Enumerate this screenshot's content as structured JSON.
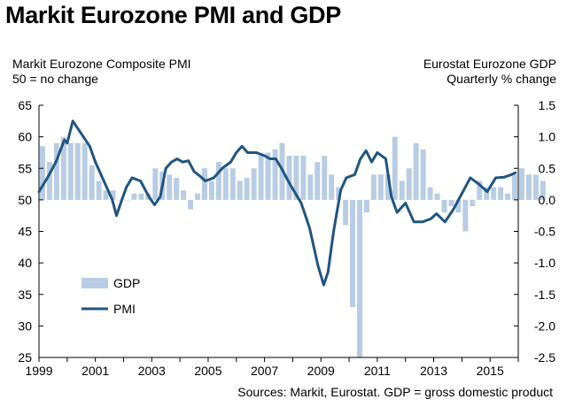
{
  "chart_data": {
    "type": "bar+line",
    "title": "Markit Eurozone PMI and GDP",
    "left_axis": {
      "label_line1": "Markit Eurozone Composite PMI",
      "label_line2": "50 = no change",
      "ylim": [
        25,
        65
      ],
      "ticks": [
        "65",
        "60",
        "55",
        "50",
        "45",
        "40",
        "35",
        "30",
        "25"
      ]
    },
    "right_axis": {
      "label_line1": "Eurostat Eurozone GDP",
      "label_line2": "Quarterly % change",
      "ylim": [
        -2.5,
        1.5
      ],
      "ticks": [
        "1.5",
        "1.0",
        "0.5",
        "0.0",
        "-0.5",
        "-1.0",
        "-1.5",
        "-2.0",
        "-2.5"
      ]
    },
    "x_ticks": [
      "1999",
      "2001",
      "2003",
      "2005",
      "2007",
      "2009",
      "2011",
      "2013",
      "2015"
    ],
    "xlim": [
      1999,
      2016
    ],
    "legend": [
      {
        "name": "GDP",
        "color": "#b8cce4"
      },
      {
        "name": "PMI",
        "color": "#1f5582"
      }
    ],
    "source": "Sources: Markit, Eurostat. GDP = gross domestic product",
    "series": [
      {
        "name": "GDP",
        "kind": "bar",
        "axis": "right",
        "color": "#b8cce4",
        "values": [
          0.85,
          0.6,
          0.9,
          1.0,
          0.9,
          0.9,
          0.9,
          0.55,
          0.3,
          0.15,
          0.15,
          0.0,
          0.0,
          0.1,
          0.1,
          0.1,
          0.5,
          0.45,
          0.4,
          0.35,
          0.15,
          -0.15,
          0.1,
          0.5,
          0.3,
          0.6,
          0.5,
          0.5,
          0.3,
          0.35,
          0.5,
          0.7,
          0.75,
          0.8,
          0.9,
          0.7,
          0.7,
          0.7,
          0.4,
          0.6,
          0.7,
          0.4,
          0.2,
          -0.4,
          -1.7,
          -2.5,
          -0.2,
          0.4,
          0.4,
          0.4,
          1.0,
          0.3,
          0.5,
          0.9,
          0.8,
          0.2,
          0.1,
          -0.2,
          -0.1,
          -0.2,
          -0.5,
          -0.1,
          0.3,
          0.2,
          0.2,
          0.2,
          0.1,
          0.4,
          0.5,
          0.4,
          0.4,
          0.3
        ]
      },
      {
        "name": "PMI",
        "kind": "line",
        "axis": "left",
        "color": "#1f5582",
        "x": [
          1999.0,
          1999.3,
          1999.6,
          1999.9,
          2000.0,
          2000.2,
          2000.5,
          2000.8,
          2001.0,
          2001.3,
          2001.6,
          2001.75,
          2001.9,
          2002.1,
          2002.3,
          2002.6,
          2002.9,
          2003.1,
          2003.3,
          2003.5,
          2003.7,
          2003.9,
          2004.1,
          2004.3,
          2004.5,
          2004.7,
          2004.9,
          2005.2,
          2005.5,
          2005.8,
          2006.0,
          2006.2,
          2006.4,
          2006.7,
          2007.0,
          2007.2,
          2007.4,
          2007.6,
          2007.9,
          2008.1,
          2008.3,
          2008.6,
          2008.9,
          2009.0,
          2009.1,
          2009.25,
          2009.45,
          2009.7,
          2009.9,
          2010.2,
          2010.4,
          2010.6,
          2010.8,
          2011.0,
          2011.3,
          2011.5,
          2011.7,
          2012.0,
          2012.3,
          2012.6,
          2012.9,
          2013.1,
          2013.4,
          2013.7,
          2014.0,
          2014.3,
          2014.6,
          2014.9,
          2015.2,
          2015.5,
          2015.7,
          2015.9
        ],
        "values": [
          51.3,
          53.5,
          56.0,
          59.5,
          59.0,
          62.5,
          60.5,
          58.5,
          56.0,
          53.0,
          50.0,
          47.5,
          49.5,
          52.0,
          53.5,
          53.0,
          50.5,
          49.2,
          50.5,
          55.0,
          56.0,
          56.5,
          56.0,
          56.2,
          54.5,
          53.8,
          53.0,
          53.5,
          55.0,
          56.0,
          57.5,
          58.5,
          57.5,
          57.5,
          57.0,
          56.5,
          56.5,
          55.0,
          52.5,
          51.0,
          49.5,
          45.5,
          39.5,
          38.0,
          36.5,
          38.5,
          45.0,
          51.5,
          53.5,
          54.0,
          56.5,
          57.8,
          56.0,
          57.5,
          56.5,
          50.5,
          48.0,
          49.5,
          46.5,
          46.5,
          47.0,
          47.8,
          46.5,
          48.5,
          51.0,
          53.5,
          52.5,
          51.3,
          53.5,
          53.6,
          53.9,
          54.3
        ]
      }
    ]
  }
}
